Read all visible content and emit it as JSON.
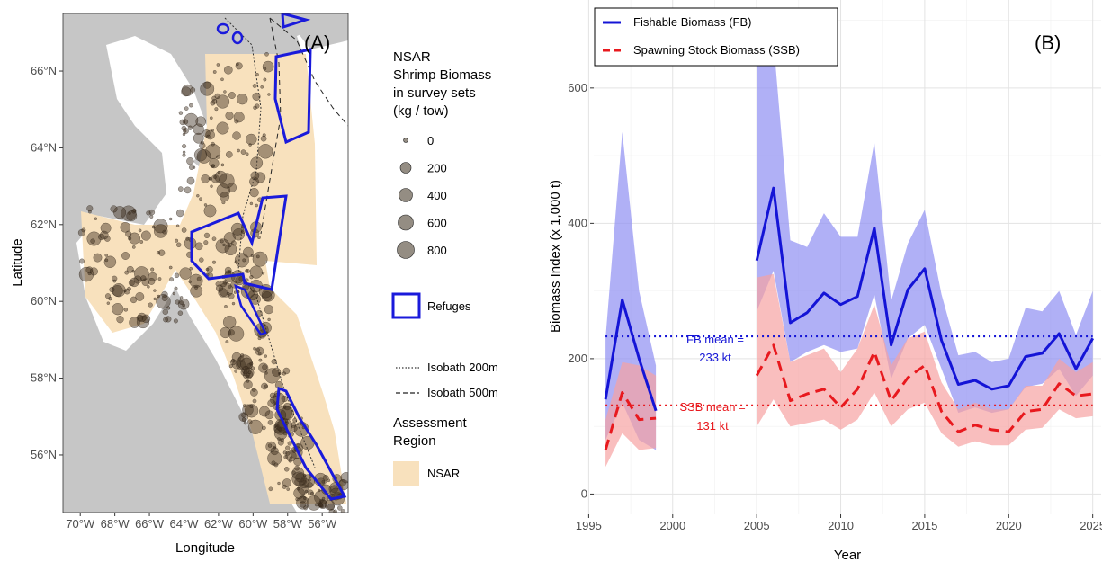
{
  "map": {
    "panel_label": "(A)",
    "xlabel": "Longitude",
    "ylabel": "Latitude",
    "lon_ticks": [
      "70°W",
      "68°W",
      "66°W",
      "64°W",
      "62°W",
      "60°W",
      "58°W",
      "56°W"
    ],
    "lon_values": [
      -70,
      -68,
      -66,
      -64,
      -62,
      -60,
      -58,
      -56
    ],
    "lat_ticks": [
      "56°N",
      "58°N",
      "60°N",
      "62°N",
      "64°N",
      "66°N"
    ],
    "lat_values": [
      56,
      58,
      60,
      62,
      64,
      66
    ],
    "xlim": [
      -71,
      -54.5
    ],
    "ylim": [
      54.5,
      67.5
    ],
    "colors": {
      "land": "#c6c6c6",
      "water": "#ffffff",
      "assessment": "#f8e1bd",
      "refuge": "#1a1adb",
      "points": "#3d2f1e"
    },
    "legend": {
      "size_title": "NSAR\nShrimp Biomass\nin survey sets\n(kg / tow)",
      "size_title_lines": [
        "NSAR",
        "Shrimp Biomass",
        "in survey sets",
        "(kg / tow)"
      ],
      "size_values": [
        "0",
        "200",
        "400",
        "600",
        "800"
      ],
      "refuge_label": "Refuges",
      "isobath_200": "Isobath 200m",
      "isobath_500": "Isobath 500m",
      "region_title": "Assessment\nRegion",
      "region_title_lines": [
        "Assessment",
        "Region"
      ],
      "region_label": "NSAR"
    }
  },
  "chart_data": {
    "type": "line",
    "panel_label": "(B)",
    "xlabel": "Year",
    "ylabel": "Biomass Index (x 1,000 t)",
    "xlim": [
      1995.3,
      2025.5
    ],
    "ylim": [
      -30,
      730
    ],
    "x_ticks": [
      1995,
      2000,
      2005,
      2010,
      2015,
      2020,
      2025
    ],
    "y_ticks": [
      0,
      200,
      400,
      600
    ],
    "grid": true,
    "legend_position": "top-left",
    "series": [
      {
        "name": "Fishable Biomass (FB)",
        "color": "#1414d6",
        "band_color": "#8f8ff2",
        "style": "solid",
        "segments": [
          {
            "x": [
              1996,
              1997,
              1998,
              1999
            ],
            "y": [
              140,
              287,
              200,
              123
            ],
            "lower": [
              80,
              135,
              80,
              65
            ],
            "upper": [
              230,
              535,
              300,
              190
            ]
          },
          {
            "x": [
              2005,
              2006,
              2007,
              2008,
              2009,
              2010,
              2011,
              2012,
              2013,
              2014,
              2015,
              2016,
              2017,
              2018,
              2019,
              2020,
              2021,
              2022,
              2023,
              2024,
              2025
            ],
            "y": [
              345,
              452,
              253,
              268,
              297,
              280,
              292,
              393,
              220,
              302,
              333,
              227,
              162,
              168,
              155,
              160,
              203,
              208,
              237,
              185,
              230
            ],
            "lower": [
              270,
              330,
              195,
              210,
              220,
              210,
              215,
              295,
              170,
              230,
              250,
              185,
              120,
              128,
              120,
              125,
              158,
              163,
              185,
              145,
              175
            ],
            "upper": [
              640,
              670,
              375,
              365,
              415,
              380,
              380,
              520,
              285,
              370,
              420,
              295,
              205,
              210,
              195,
              200,
              275,
              270,
              300,
              235,
              300
            ]
          }
        ]
      },
      {
        "name": "Spawning Stock Biomass (SSB)",
        "color": "#e8191e",
        "band_color": "#f6a2a2",
        "style": "dashed",
        "segments": [
          {
            "x": [
              1996,
              1997,
              1998,
              1999
            ],
            "y": [
              65,
              150,
              110,
              112
            ],
            "lower": [
              40,
              90,
              65,
              68
            ],
            "upper": [
              110,
              195,
              190,
              175
            ]
          },
          {
            "x": [
              2005,
              2006,
              2007,
              2008,
              2009,
              2010,
              2011,
              2012,
              2013,
              2014,
              2015,
              2016,
              2017,
              2018,
              2019,
              2020,
              2021,
              2022,
              2023,
              2024,
              2025
            ],
            "y": [
              175,
              220,
              138,
              148,
              155,
              128,
              155,
              210,
              138,
              172,
              190,
              122,
              92,
              102,
              95,
              92,
              122,
              125,
              163,
              145,
              148
            ],
            "lower": [
              100,
              140,
              100,
              105,
              110,
              95,
              110,
              150,
              100,
              125,
              135,
              90,
              70,
              78,
              72,
              72,
              95,
              98,
              125,
              112,
              115
            ],
            "upper": [
              320,
              325,
              195,
              205,
              215,
              180,
              215,
              280,
              190,
              230,
              240,
              165,
              125,
              135,
              125,
              125,
              160,
              160,
              200,
              180,
              195
            ]
          }
        ]
      }
    ],
    "means": [
      {
        "label_line1": "FB mean =",
        "label_line2": "233 kt",
        "value": 233,
        "color": "#1414d6"
      },
      {
        "label_line1": "SSB mean =",
        "label_line2": "131 kt",
        "value": 131,
        "color": "#e8191e"
      }
    ]
  }
}
